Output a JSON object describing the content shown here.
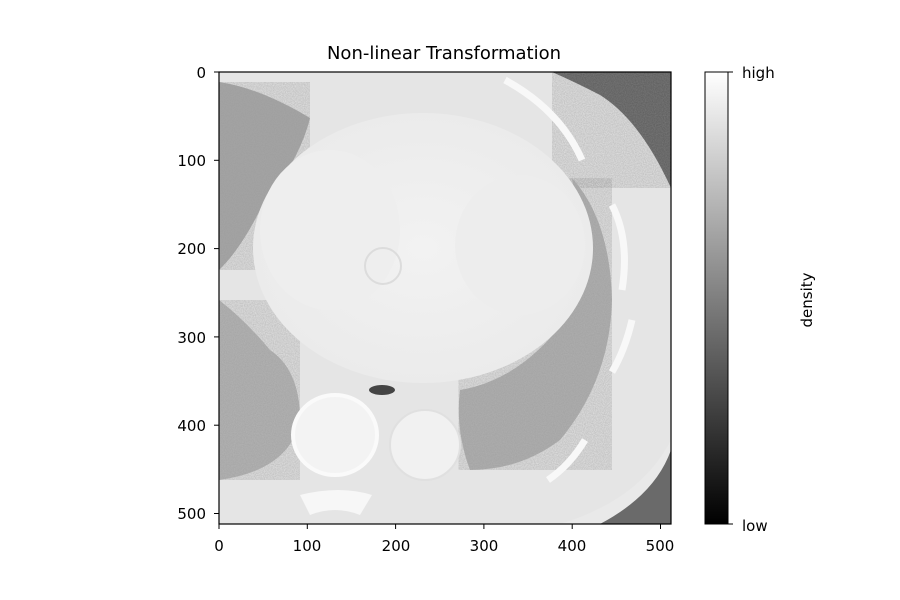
{
  "figure": {
    "title": "Non-linear Transformation",
    "image_description": "Axial chest CT slice displayed in grayscale after a non-linear intensity transformation; heart in center, lungs at sides, spine and aorta at bottom."
  },
  "axes": {
    "x_ticks": [
      "0",
      "100",
      "200",
      "300",
      "400",
      "500"
    ],
    "y_ticks": [
      "0",
      "100",
      "200",
      "300",
      "400",
      "500"
    ],
    "x_range": [
      0,
      512
    ],
    "y_range": [
      0,
      512
    ]
  },
  "colorbar": {
    "label": "density",
    "top_label": "high",
    "bottom_label": "low",
    "colormap": "gray"
  }
}
